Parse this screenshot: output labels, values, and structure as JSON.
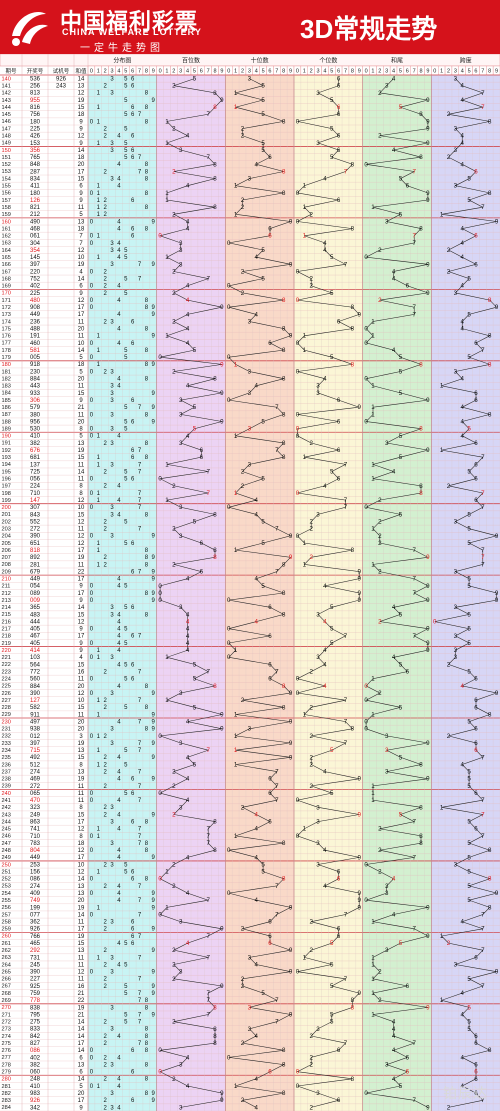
{
  "header": {
    "brand_cn": "中国福利彩票",
    "brand_en": "CHINA WELFARE LOTTERY",
    "slogan": "一定牛走势图",
    "title": "3D常规走势"
  },
  "colors": {
    "header_red": "#d5121b",
    "number_red": "#e0191d",
    "digit_black": "#111111",
    "fenbu_bg": "#c8f4f4",
    "bai_bg": "#ecd3f4",
    "shi_bg": "#f9d9c8",
    "ge_bg": "#fbf6d6",
    "hewei_bg": "#d3f0d0",
    "kuadu_bg": "#d7d6f6"
  },
  "columns": {
    "issue": "期号",
    "draw": "开奖号",
    "trial": "试机号",
    "sum": "和值",
    "fenbu": "分布图",
    "bai": "百位数",
    "shi": "十位数",
    "ge": "个位数",
    "hewei": "和尾",
    "kuadu": "跨度"
  },
  "digit_labels": [
    "0",
    "1",
    "2",
    "3",
    "4",
    "5",
    "6",
    "7",
    "8",
    "9"
  ],
  "watermark": "铂辰达",
  "chart_data": {
    "type": "table",
    "title": "3D常规走势",
    "columns": [
      "期号",
      "开奖号",
      "试机号",
      "和值",
      "分布图",
      "百位数",
      "十位数",
      "个位数",
      "和尾",
      "跨度"
    ],
    "rows": [
      {
        "issue": "140",
        "draw": "536",
        "trial": "926",
        "sum": "14"
      },
      {
        "issue": "141",
        "draw": "256",
        "trial": "243",
        "sum": "13"
      },
      {
        "issue": "142",
        "draw": "813",
        "sum": "12"
      },
      {
        "issue": "143",
        "draw": "955",
        "sum": "19"
      },
      {
        "issue": "144",
        "draw": "816",
        "sum": "15"
      },
      {
        "issue": "145",
        "draw": "756",
        "sum": "18"
      },
      {
        "issue": "146",
        "draw": "180",
        "sum": "9"
      },
      {
        "issue": "147",
        "draw": "225",
        "sum": "9"
      },
      {
        "issue": "148",
        "draw": "426",
        "sum": "12"
      },
      {
        "issue": "149",
        "draw": "153",
        "sum": "9"
      },
      {
        "issue": "150",
        "draw": "356",
        "sum": "14"
      },
      {
        "issue": "151",
        "draw": "765",
        "sum": "18"
      },
      {
        "issue": "152",
        "draw": "848",
        "sum": "20"
      },
      {
        "issue": "153",
        "draw": "287",
        "sum": "17"
      },
      {
        "issue": "154",
        "draw": "834",
        "sum": "15"
      },
      {
        "issue": "155",
        "draw": "411",
        "sum": "6"
      },
      {
        "issue": "156",
        "draw": "180",
        "sum": "9"
      },
      {
        "issue": "157",
        "draw": "126",
        "sum": "9"
      },
      {
        "issue": "158",
        "draw": "821",
        "sum": "11"
      },
      {
        "issue": "159",
        "draw": "212",
        "sum": "5"
      },
      {
        "issue": "160",
        "draw": "490",
        "sum": "13"
      },
      {
        "issue": "161",
        "draw": "468",
        "sum": "18"
      },
      {
        "issue": "162",
        "draw": "061",
        "sum": "7"
      },
      {
        "issue": "163",
        "draw": "304",
        "sum": "7"
      },
      {
        "issue": "164",
        "draw": "354",
        "sum": "12"
      },
      {
        "issue": "165",
        "draw": "145",
        "sum": "10"
      },
      {
        "issue": "166",
        "draw": "397",
        "sum": "19"
      },
      {
        "issue": "167",
        "draw": "220",
        "sum": "4"
      },
      {
        "issue": "168",
        "draw": "752",
        "sum": "14"
      },
      {
        "issue": "169",
        "draw": "402",
        "sum": "6"
      },
      {
        "issue": "170",
        "draw": "225",
        "sum": "9"
      },
      {
        "issue": "171",
        "draw": "480",
        "sum": "12"
      },
      {
        "issue": "172",
        "draw": "908",
        "sum": "17"
      },
      {
        "issue": "173",
        "draw": "449",
        "sum": "17"
      },
      {
        "issue": "174",
        "draw": "236",
        "sum": "11"
      },
      {
        "issue": "175",
        "draw": "488",
        "sum": "20"
      },
      {
        "issue": "176",
        "draw": "191",
        "sum": "11"
      },
      {
        "issue": "177",
        "draw": "460",
        "sum": "10"
      },
      {
        "issue": "178",
        "draw": "581",
        "sum": "14"
      },
      {
        "issue": "179",
        "draw": "005",
        "sum": "5"
      },
      {
        "issue": "180",
        "draw": "918",
        "sum": "18"
      },
      {
        "issue": "181",
        "draw": "230",
        "sum": "5"
      },
      {
        "issue": "182",
        "draw": "884",
        "sum": "20"
      },
      {
        "issue": "183",
        "draw": "443",
        "sum": "11"
      },
      {
        "issue": "184",
        "draw": "933",
        "sum": "15"
      },
      {
        "issue": "185",
        "draw": "306",
        "sum": "9"
      },
      {
        "issue": "186",
        "draw": "579",
        "sum": "21"
      },
      {
        "issue": "187",
        "draw": "380",
        "sum": "11"
      },
      {
        "issue": "188",
        "draw": "956",
        "sum": "20"
      },
      {
        "issue": "189",
        "draw": "530",
        "sum": "8"
      },
      {
        "issue": "190",
        "draw": "410",
        "sum": "5"
      },
      {
        "issue": "191",
        "draw": "382",
        "sum": "13"
      },
      {
        "issue": "192",
        "draw": "676",
        "sum": "19"
      },
      {
        "issue": "193",
        "draw": "681",
        "sum": "15"
      },
      {
        "issue": "194",
        "draw": "137",
        "sum": "11"
      },
      {
        "issue": "195",
        "draw": "725",
        "sum": "14"
      },
      {
        "issue": "196",
        "draw": "056",
        "sum": "11"
      },
      {
        "issue": "197",
        "draw": "224",
        "sum": "8"
      },
      {
        "issue": "198",
        "draw": "710",
        "sum": "8"
      },
      {
        "issue": "199",
        "draw": "147",
        "sum": "12"
      },
      {
        "issue": "200",
        "draw": "307",
        "sum": "10"
      },
      {
        "issue": "201",
        "draw": "843",
        "sum": "15"
      },
      {
        "issue": "202",
        "draw": "552",
        "sum": "12"
      },
      {
        "issue": "203",
        "draw": "272",
        "sum": "11"
      },
      {
        "issue": "204",
        "draw": "390",
        "sum": "12"
      },
      {
        "issue": "205",
        "draw": "651",
        "sum": "12"
      },
      {
        "issue": "206",
        "draw": "818",
        "sum": "17"
      },
      {
        "issue": "207",
        "draw": "892",
        "sum": "19"
      },
      {
        "issue": "208",
        "draw": "281",
        "sum": "11"
      },
      {
        "issue": "209",
        "draw": "679",
        "sum": "22"
      },
      {
        "issue": "210",
        "draw": "449",
        "sum": "17"
      },
      {
        "issue": "211",
        "draw": "054",
        "sum": "9"
      },
      {
        "issue": "212",
        "draw": "089",
        "sum": "17"
      },
      {
        "issue": "213",
        "draw": "009",
        "sum": "9"
      },
      {
        "issue": "214",
        "draw": "365",
        "sum": "14"
      },
      {
        "issue": "215",
        "draw": "483",
        "sum": "15"
      },
      {
        "issue": "216",
        "draw": "444",
        "sum": "12"
      },
      {
        "issue": "217",
        "draw": "405",
        "sum": "9"
      },
      {
        "issue": "218",
        "draw": "467",
        "sum": "17"
      },
      {
        "issue": "219",
        "draw": "405",
        "sum": "9"
      },
      {
        "issue": "220",
        "draw": "414",
        "sum": "9"
      },
      {
        "issue": "221",
        "draw": "103",
        "sum": "4"
      },
      {
        "issue": "222",
        "draw": "564",
        "sum": "15"
      },
      {
        "issue": "223",
        "draw": "772",
        "sum": "16"
      },
      {
        "issue": "224",
        "draw": "560",
        "sum": "11"
      },
      {
        "issue": "225",
        "draw": "884",
        "sum": "20"
      },
      {
        "issue": "226",
        "draw": "390",
        "sum": "12"
      },
      {
        "issue": "227",
        "draw": "127",
        "sum": "10"
      },
      {
        "issue": "228",
        "draw": "582",
        "sum": "15"
      },
      {
        "issue": "229",
        "draw": "911",
        "sum": "11"
      },
      {
        "issue": "230",
        "draw": "497",
        "sum": "20"
      },
      {
        "issue": "231",
        "draw": "938",
        "sum": "20"
      },
      {
        "issue": "232",
        "draw": "012",
        "sum": "3"
      },
      {
        "issue": "233",
        "draw": "397",
        "sum": "19"
      },
      {
        "issue": "234",
        "draw": "715",
        "sum": "13"
      },
      {
        "issue": "235",
        "draw": "492",
        "sum": "15"
      },
      {
        "issue": "236",
        "draw": "512",
        "sum": "8"
      },
      {
        "issue": "237",
        "draw": "274",
        "sum": "13"
      },
      {
        "issue": "238",
        "draw": "469",
        "sum": "19"
      },
      {
        "issue": "239",
        "draw": "272",
        "sum": "11"
      },
      {
        "issue": "240",
        "draw": "065",
        "sum": "11"
      },
      {
        "issue": "241",
        "draw": "470",
        "sum": "11"
      },
      {
        "issue": "242",
        "draw": "323",
        "sum": "8"
      },
      {
        "issue": "243",
        "draw": "249",
        "sum": "15"
      },
      {
        "issue": "244",
        "draw": "863",
        "sum": "17"
      },
      {
        "issue": "245",
        "draw": "741",
        "sum": "12"
      },
      {
        "issue": "246",
        "draw": "710",
        "sum": "8"
      },
      {
        "issue": "247",
        "draw": "783",
        "sum": "18"
      },
      {
        "issue": "248",
        "draw": "804",
        "sum": "12"
      },
      {
        "issue": "249",
        "draw": "449",
        "sum": "17"
      },
      {
        "issue": "250",
        "draw": "253",
        "sum": "10"
      },
      {
        "issue": "251",
        "draw": "156",
        "sum": "12"
      },
      {
        "issue": "252",
        "draw": "086",
        "sum": "14"
      },
      {
        "issue": "253",
        "draw": "274",
        "sum": "13"
      },
      {
        "issue": "254",
        "draw": "409",
        "sum": "13"
      },
      {
        "issue": "255",
        "draw": "749",
        "sum": "20"
      },
      {
        "issue": "256",
        "draw": "199",
        "sum": "19"
      },
      {
        "issue": "257",
        "draw": "077",
        "sum": "14"
      },
      {
        "issue": "258",
        "draw": "362",
        "sum": "11"
      },
      {
        "issue": "259",
        "draw": "926",
        "sum": "17"
      },
      {
        "issue": "260",
        "draw": "766",
        "sum": "19"
      },
      {
        "issue": "261",
        "draw": "465",
        "sum": "15"
      },
      {
        "issue": "262",
        "draw": "292",
        "sum": "13"
      },
      {
        "issue": "263",
        "draw": "731",
        "sum": "11"
      },
      {
        "issue": "264",
        "draw": "245",
        "sum": "11"
      },
      {
        "issue": "265",
        "draw": "390",
        "sum": "12"
      },
      {
        "issue": "266",
        "draw": "227",
        "sum": "11"
      },
      {
        "issue": "267",
        "draw": "925",
        "sum": "16"
      },
      {
        "issue": "268",
        "draw": "759",
        "sum": "21"
      },
      {
        "issue": "269",
        "draw": "778",
        "sum": "22"
      },
      {
        "issue": "270",
        "draw": "838",
        "sum": "19"
      },
      {
        "issue": "271",
        "draw": "795",
        "sum": "21"
      },
      {
        "issue": "272",
        "draw": "275",
        "sum": "14"
      },
      {
        "issue": "273",
        "draw": "833",
        "sum": "14"
      },
      {
        "issue": "274",
        "draw": "842",
        "sum": "14"
      },
      {
        "issue": "275",
        "draw": "827",
        "sum": "17"
      },
      {
        "issue": "276",
        "draw": "086",
        "sum": "14"
      },
      {
        "issue": "277",
        "draw": "402",
        "sum": "6"
      },
      {
        "issue": "278",
        "draw": "382",
        "sum": "13"
      },
      {
        "issue": "279",
        "draw": "060",
        "sum": "6"
      },
      {
        "issue": "280",
        "draw": "248",
        "sum": "14"
      },
      {
        "issue": "281",
        "draw": "410",
        "sum": "5"
      },
      {
        "issue": "282",
        "draw": "983",
        "sum": "20"
      },
      {
        "issue": "283",
        "draw": "926",
        "sum": "17"
      },
      {
        "issue": "284",
        "draw": "342",
        "sum": "9"
      }
    ]
  }
}
